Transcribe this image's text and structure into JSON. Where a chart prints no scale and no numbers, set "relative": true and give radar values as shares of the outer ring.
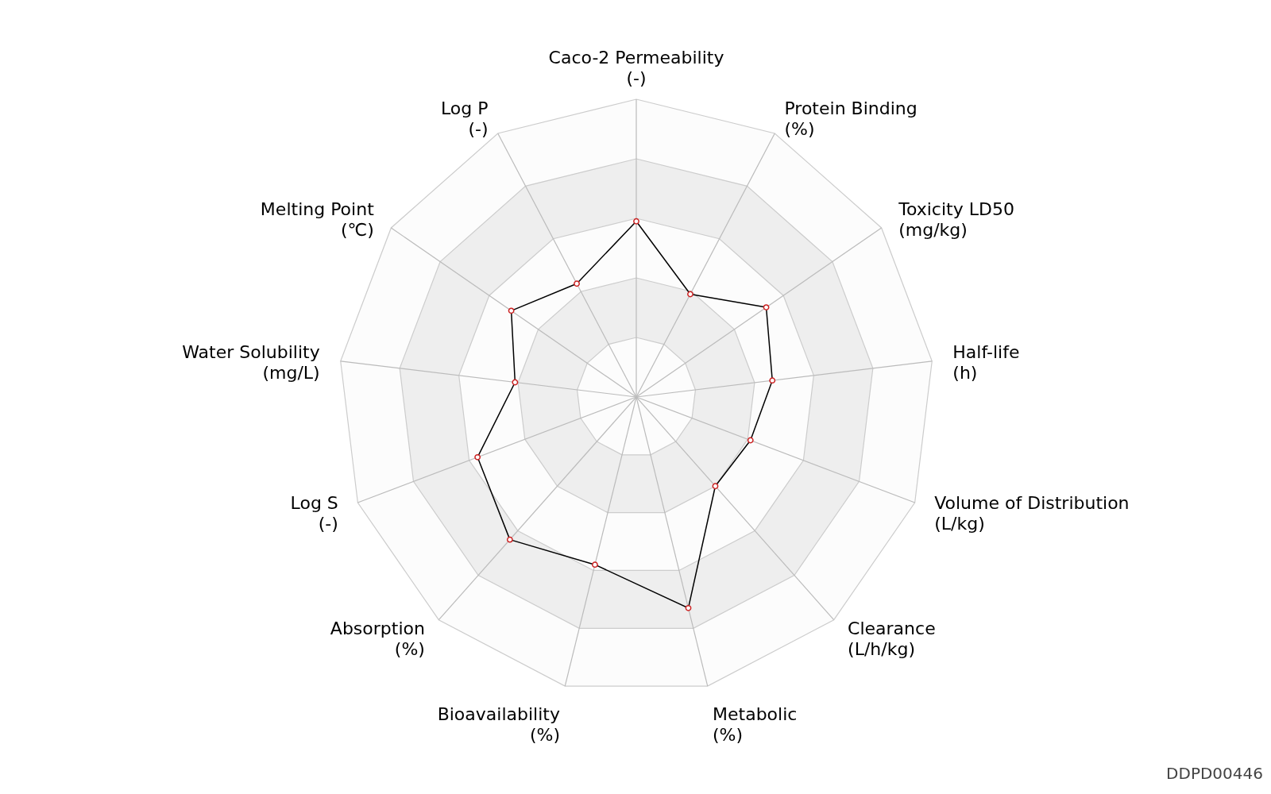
{
  "chart_data": {
    "type": "radar",
    "relative": true,
    "grid": true,
    "marker": "circle",
    "line_style": "solid",
    "categories": [
      "Caco-2 Permeability\n(-)",
      "Protein Binding\n(%)",
      "Toxicity LD50\n(mg/kg)",
      "Half-life\n(h)",
      "Volume of Distribution\n(L/kg)",
      "Clearance\n(L/h/kg)",
      "Metabolic\n(%)",
      "Bioavailability\n(%)",
      "Absorption\n(%)",
      "Log S\n(-)",
      "Water Solubility\n(mg/L)",
      "Melting Point\n(℃)",
      "Log P\n(-)"
    ],
    "series": [
      {
        "color": "#000000",
        "values": [
          0.59,
          0.39,
          0.53,
          0.46,
          0.41,
          0.4,
          0.73,
          0.58,
          0.64,
          0.57,
          0.41,
          0.51,
          0.43
        ]
      }
    ],
    "annotations": [
      "DDPD00446"
    ]
  }
}
